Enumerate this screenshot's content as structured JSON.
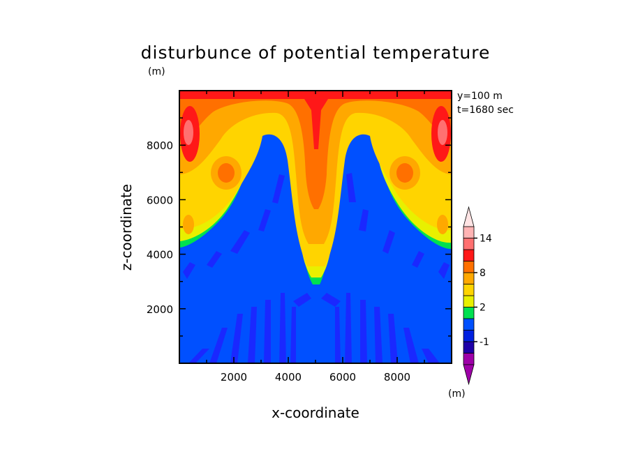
{
  "chart_data": {
    "type": "heatmap",
    "title": "disturbunce of potential temperature",
    "unit_label": "(m)",
    "annotations": [
      "y=100 m",
      "t=1680 sec"
    ],
    "xlabel": "x-coordinate",
    "ylabel": "z-coordinate",
    "xlim": [
      0,
      10000
    ],
    "ylim": [
      0,
      10000
    ],
    "xticks": [
      2000,
      4000,
      6000,
      8000
    ],
    "xtick_labels": [
      "2000",
      "4000",
      "6000",
      "8000"
    ],
    "yticks": [
      2000,
      4000,
      6000,
      8000
    ],
    "ytick_labels": [
      "2000",
      "4000",
      "6000",
      "8000"
    ],
    "colorbar": {
      "unit_label": "(m)",
      "tick_labels": [
        "14",
        "8",
        "2",
        "-1"
      ],
      "tick_values": [
        14,
        8,
        2,
        -1
      ],
      "levels": [
        -3,
        -2,
        -1,
        0,
        1,
        2,
        4,
        6,
        8,
        10,
        12,
        14,
        16
      ],
      "colors": [
        "#9e00a8",
        "#1e00a8",
        "#0020e0",
        "#0050ff",
        "#00e050",
        "#e8f000",
        "#ffd400",
        "#ffa800",
        "#ff7000",
        "#ff1818",
        "#ff7070",
        "#ffb4b4"
      ],
      "under_color": "#9e00a8",
      "over_color": "#ffe4e4"
    },
    "field_description": "Central downward plume of warm air around x=5000, bounded by two cold (blue) upward columns; warm outer regions above z~4500 on both sides."
  }
}
